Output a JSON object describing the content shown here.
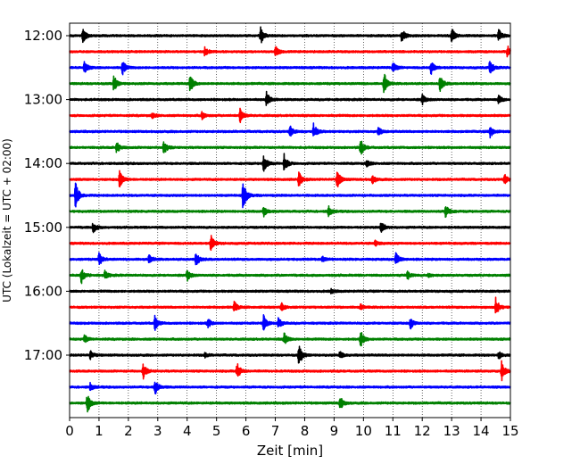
{
  "chart_data": {
    "type": "line",
    "title": "",
    "xlabel": "Zeit  [min]",
    "ylabel": "UTC (Lokalzeit = UTC + 02:00)",
    "xlim": [
      0,
      15
    ],
    "x_ticks": [
      0,
      1,
      2,
      3,
      4,
      5,
      6,
      7,
      8,
      9,
      10,
      11,
      12,
      13,
      14,
      15
    ],
    "x_tick_labels": [
      "0",
      "1",
      "2",
      "3",
      "4",
      "5",
      "6",
      "7",
      "8",
      "9",
      "10",
      "11",
      "12",
      "13",
      "14",
      "15"
    ],
    "y_tick_labels": [
      "12:00",
      "13:00",
      "14:00",
      "15:00",
      "16:00",
      "17:00"
    ],
    "trace_interval_min": 15,
    "grid": "vertical dotted at each minute",
    "legend": "none",
    "colors": [
      "#000000",
      "#ff0000",
      "#0000ff",
      "#008000"
    ],
    "traces": [
      {
        "start": "12:00",
        "color": "#000000",
        "events": [
          {
            "t": 0.45,
            "amp": 1.0
          },
          {
            "t": 6.5,
            "amp": 1.2
          },
          {
            "t": 11.3,
            "amp": 1.0
          },
          {
            "t": 13.0,
            "amp": 1.1
          },
          {
            "t": 14.6,
            "amp": 1.0
          }
        ]
      },
      {
        "start": "12:15",
        "color": "#ff0000",
        "events": [
          {
            "t": 4.6,
            "amp": 0.6
          },
          {
            "t": 7.0,
            "amp": 0.8
          },
          {
            "t": 14.9,
            "amp": 0.8
          }
        ]
      },
      {
        "start": "12:30",
        "color": "#0000ff",
        "events": [
          {
            "t": 0.5,
            "amp": 0.8
          },
          {
            "t": 1.8,
            "amp": 1.0
          },
          {
            "t": 11.0,
            "amp": 0.7
          },
          {
            "t": 12.3,
            "amp": 1.0
          },
          {
            "t": 14.3,
            "amp": 1.1
          }
        ]
      },
      {
        "start": "12:45",
        "color": "#008000",
        "events": [
          {
            "t": 1.5,
            "amp": 1.2
          },
          {
            "t": 4.1,
            "amp": 1.3
          },
          {
            "t": 10.7,
            "amp": 1.6
          },
          {
            "t": 12.6,
            "amp": 1.2
          }
        ]
      },
      {
        "start": "13:00",
        "color": "#000000",
        "events": [
          {
            "t": 6.7,
            "amp": 1.1
          },
          {
            "t": 12.0,
            "amp": 0.7
          },
          {
            "t": 14.6,
            "amp": 0.6
          }
        ]
      },
      {
        "start": "13:15",
        "color": "#ff0000",
        "events": [
          {
            "t": 2.8,
            "amp": 0.4
          },
          {
            "t": 4.5,
            "amp": 0.5
          },
          {
            "t": 5.8,
            "amp": 1.0
          }
        ]
      },
      {
        "start": "13:30",
        "color": "#0000ff",
        "events": [
          {
            "t": 7.5,
            "amp": 0.8
          },
          {
            "t": 8.3,
            "amp": 1.1
          },
          {
            "t": 10.5,
            "amp": 0.6
          },
          {
            "t": 14.3,
            "amp": 1.0
          }
        ]
      },
      {
        "start": "13:45",
        "color": "#008000",
        "events": [
          {
            "t": 1.6,
            "amp": 0.8
          },
          {
            "t": 3.2,
            "amp": 1.0
          },
          {
            "t": 9.9,
            "amp": 1.2
          }
        ]
      },
      {
        "start": "14:00",
        "color": "#000000",
        "events": [
          {
            "t": 6.6,
            "amp": 1.4
          },
          {
            "t": 7.3,
            "amp": 1.3
          },
          {
            "t": 10.1,
            "amp": 0.5
          }
        ]
      },
      {
        "start": "14:15",
        "color": "#ff0000",
        "events": [
          {
            "t": 1.7,
            "amp": 1.3
          },
          {
            "t": 7.8,
            "amp": 1.0
          },
          {
            "t": 9.1,
            "amp": 1.4
          },
          {
            "t": 10.3,
            "amp": 0.6
          },
          {
            "t": 14.8,
            "amp": 0.7
          }
        ]
      },
      {
        "start": "14:30",
        "color": "#0000ff",
        "events": [
          {
            "t": 0.2,
            "amp": 2.0
          },
          {
            "t": 5.9,
            "amp": 2.3
          }
        ]
      },
      {
        "start": "14:45",
        "color": "#008000",
        "events": [
          {
            "t": 6.6,
            "amp": 0.7
          },
          {
            "t": 8.8,
            "amp": 0.8
          },
          {
            "t": 12.8,
            "amp": 1.2
          }
        ]
      },
      {
        "start": "15:00",
        "color": "#000000",
        "events": [
          {
            "t": 0.8,
            "amp": 0.8
          },
          {
            "t": 10.6,
            "amp": 1.0
          }
        ]
      },
      {
        "start": "15:15",
        "color": "#ff0000",
        "events": [
          {
            "t": 4.8,
            "amp": 1.2
          },
          {
            "t": 10.4,
            "amp": 0.4
          }
        ]
      },
      {
        "start": "15:30",
        "color": "#0000ff",
        "events": [
          {
            "t": 1.0,
            "amp": 0.9
          },
          {
            "t": 2.7,
            "amp": 0.7
          },
          {
            "t": 4.3,
            "amp": 1.1
          },
          {
            "t": 8.6,
            "amp": 0.4
          },
          {
            "t": 11.1,
            "amp": 1.0
          }
        ]
      },
      {
        "start": "15:45",
        "color": "#008000",
        "events": [
          {
            "t": 0.4,
            "amp": 1.1
          },
          {
            "t": 1.2,
            "amp": 0.6
          },
          {
            "t": 4.0,
            "amp": 0.8
          },
          {
            "t": 11.5,
            "amp": 0.6
          },
          {
            "t": 12.2,
            "amp": 0.3
          }
        ]
      },
      {
        "start": "16:00",
        "color": "#000000",
        "events": [
          {
            "t": 8.9,
            "amp": 0.3
          }
        ]
      },
      {
        "start": "16:15",
        "color": "#ff0000",
        "events": [
          {
            "t": 5.6,
            "amp": 0.8
          },
          {
            "t": 7.2,
            "amp": 0.7
          },
          {
            "t": 9.9,
            "amp": 0.4
          },
          {
            "t": 14.5,
            "amp": 1.3
          }
        ]
      },
      {
        "start": "16:30",
        "color": "#0000ff",
        "events": [
          {
            "t": 2.9,
            "amp": 1.0
          },
          {
            "t": 4.7,
            "amp": 0.7
          },
          {
            "t": 6.6,
            "amp": 1.1
          },
          {
            "t": 7.1,
            "amp": 0.8
          },
          {
            "t": 11.6,
            "amp": 0.8
          }
        ]
      },
      {
        "start": "16:45",
        "color": "#008000",
        "events": [
          {
            "t": 0.5,
            "amp": 0.6
          },
          {
            "t": 7.3,
            "amp": 0.9
          },
          {
            "t": 9.9,
            "amp": 1.2
          }
        ]
      },
      {
        "start": "17:00",
        "color": "#000000",
        "events": [
          {
            "t": 0.7,
            "amp": 0.6
          },
          {
            "t": 4.6,
            "amp": 0.3
          },
          {
            "t": 7.8,
            "amp": 1.6
          },
          {
            "t": 9.2,
            "amp": 0.6
          },
          {
            "t": 14.6,
            "amp": 0.6
          }
        ]
      },
      {
        "start": "17:15",
        "color": "#ff0000",
        "events": [
          {
            "t": 2.5,
            "amp": 1.1
          },
          {
            "t": 5.7,
            "amp": 1.2
          },
          {
            "t": 14.7,
            "amp": 1.4
          }
        ]
      },
      {
        "start": "17:30",
        "color": "#0000ff",
        "events": [
          {
            "t": 0.7,
            "amp": 0.5
          },
          {
            "t": 2.9,
            "amp": 1.2
          }
        ]
      },
      {
        "start": "17:45",
        "color": "#008000",
        "events": [
          {
            "t": 0.6,
            "amp": 1.4
          },
          {
            "t": 9.2,
            "amp": 1.0
          }
        ]
      }
    ]
  }
}
